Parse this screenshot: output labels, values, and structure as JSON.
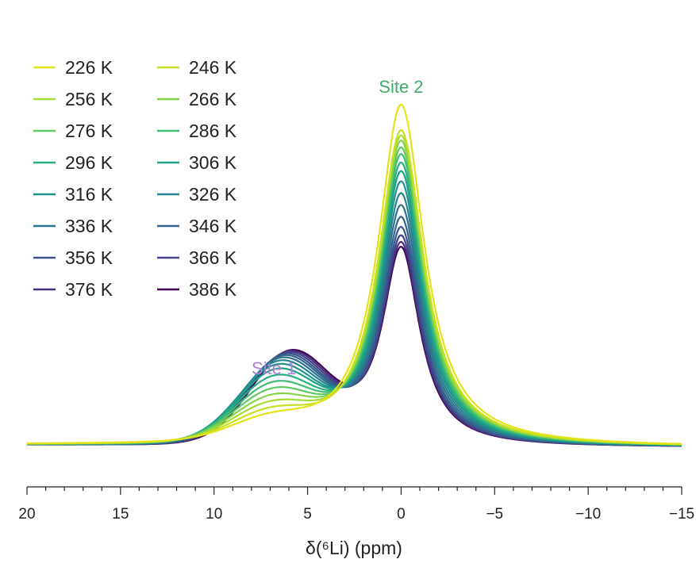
{
  "chart_data": {
    "type": "line",
    "xlabel": "δ(⁶Li) (ppm)",
    "xlim": [
      20,
      -15
    ],
    "x_reversed": true,
    "x_ticks": [
      20,
      15,
      10,
      5,
      0,
      -5,
      -10,
      -15
    ],
    "x_tick_labels": [
      "20",
      "15",
      "10",
      "5",
      "0",
      "−5",
      "−10",
      "−15"
    ],
    "y_axis_visible": false,
    "grid": false,
    "legend_position": "top-left",
    "legend_columns": 2,
    "annotations": [
      {
        "text": "Site 1",
        "x": 6.8,
        "color": "#b07fd6"
      },
      {
        "text": "Site 2",
        "x": 0,
        "color": "#3fae6a"
      }
    ],
    "series": [
      {
        "name": "226 K",
        "color": "#e3e418",
        "site2_height": 1.0,
        "site1_height": 0.055,
        "site1_center": 7.0,
        "site2_width": 1.5
      },
      {
        "name": "246 K",
        "color": "#c8e020",
        "site2_height": 0.925,
        "site1_height": 0.075,
        "site1_center": 6.95,
        "site2_width": 1.48
      },
      {
        "name": "256 K",
        "color": "#a5db36",
        "site2_height": 0.91,
        "site1_height": 0.095,
        "site1_center": 6.9,
        "site2_width": 1.46
      },
      {
        "name": "266 K",
        "color": "#84d44b",
        "site2_height": 0.895,
        "site1_height": 0.115,
        "site1_center": 6.85,
        "site2_width": 1.44
      },
      {
        "name": "276 K",
        "color": "#5ec962",
        "site2_height": 0.875,
        "site1_height": 0.135,
        "site1_center": 6.8,
        "site2_width": 1.42
      },
      {
        "name": "286 K",
        "color": "#3fbc73",
        "site2_height": 0.855,
        "site1_height": 0.155,
        "site1_center": 6.75,
        "site2_width": 1.4
      },
      {
        "name": "296 K",
        "color": "#28ae80",
        "site2_height": 0.83,
        "site1_height": 0.175,
        "site1_center": 6.7,
        "site2_width": 1.38
      },
      {
        "name": "306 K",
        "color": "#1fa088",
        "site2_height": 0.805,
        "site1_height": 0.195,
        "site1_center": 6.65,
        "site2_width": 1.36
      },
      {
        "name": "316 K",
        "color": "#21918c",
        "site2_height": 0.775,
        "site1_height": 0.21,
        "site1_center": 6.6,
        "site2_width": 1.34
      },
      {
        "name": "326 K",
        "color": "#26828e",
        "site2_height": 0.74,
        "site1_height": 0.222,
        "site1_center": 6.5,
        "site2_width": 1.32
      },
      {
        "name": "336 K",
        "color": "#2c728e",
        "site2_height": 0.705,
        "site1_height": 0.232,
        "site1_center": 6.4,
        "site2_width": 1.3
      },
      {
        "name": "346 K",
        "color": "#33638d",
        "site2_height": 0.67,
        "site1_height": 0.24,
        "site1_center": 6.3,
        "site2_width": 1.28
      },
      {
        "name": "356 K",
        "color": "#3b528b",
        "site2_height": 0.64,
        "site1_height": 0.246,
        "site1_center": 6.2,
        "site2_width": 1.26
      },
      {
        "name": "366 K",
        "color": "#424086",
        "site2_height": 0.615,
        "site1_height": 0.251,
        "site1_center": 6.1,
        "site2_width": 1.25
      },
      {
        "name": "376 K",
        "color": "#472d7b",
        "site2_height": 0.595,
        "site1_height": 0.255,
        "site1_center": 6.0,
        "site2_width": 1.24
      },
      {
        "name": "386 K",
        "color": "#440154",
        "site2_height": 0.58,
        "site1_height": 0.258,
        "site1_center": 5.9,
        "site2_width": 1.23
      }
    ]
  }
}
